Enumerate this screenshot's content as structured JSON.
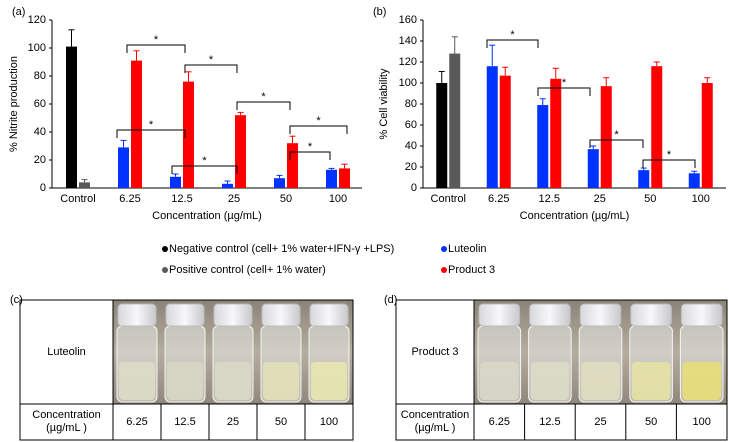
{
  "chart_data": [
    {
      "type": "bar",
      "panel": "(a)",
      "ylabel": "% Nitrite production",
      "xlabel": "Concentration (µg/mL)",
      "categories": [
        "Control",
        "6.25",
        "12.5",
        "25",
        "50",
        "100"
      ],
      "ylim": [
        0,
        120
      ],
      "yticks": [
        0,
        20,
        40,
        60,
        80,
        100,
        120
      ],
      "series": [
        {
          "name": "Negative control (cell+ 1% water+IFN-γ +LPS)",
          "color": "#000000",
          "values": [
            101,
            null,
            null,
            null,
            null,
            null
          ],
          "errors": [
            12,
            null,
            null,
            null,
            null,
            null
          ]
        },
        {
          "name": "Positive control  (cell+ 1% water)",
          "color": "#595959",
          "values": [
            4,
            null,
            null,
            null,
            null,
            null
          ],
          "errors": [
            2,
            null,
            null,
            null,
            null,
            null
          ]
        },
        {
          "name": "Luteolin",
          "color": "#0033ff",
          "values": [
            null,
            29,
            8,
            3,
            7,
            13
          ],
          "errors": [
            null,
            5,
            2,
            2,
            2,
            1
          ]
        },
        {
          "name": "Product 3",
          "color": "#ff0000",
          "values": [
            null,
            91,
            76,
            52,
            32,
            14
          ],
          "errors": [
            null,
            7,
            7,
            2,
            5,
            3
          ]
        }
      ],
      "annotations": [
        "*",
        "*",
        "*",
        "*",
        "*",
        "*",
        "*"
      ]
    },
    {
      "type": "bar",
      "panel": "(b)",
      "ylabel": "% Cell viability",
      "xlabel": "Concentration (µg/mL)",
      "categories": [
        "Control",
        "6.25",
        "12.5",
        "25",
        "50",
        "100"
      ],
      "ylim": [
        0,
        160
      ],
      "yticks": [
        0,
        20,
        40,
        60,
        80,
        100,
        120,
        140,
        160
      ],
      "series": [
        {
          "color": "#000000",
          "values": [
            100,
            null,
            null,
            null,
            null,
            null
          ],
          "errors": [
            11,
            null,
            null,
            null,
            null,
            null
          ]
        },
        {
          "color": "#595959",
          "values": [
            128,
            null,
            null,
            null,
            null,
            null
          ],
          "errors": [
            16,
            null,
            null,
            null,
            null,
            null
          ]
        },
        {
          "color": "#0033ff",
          "values": [
            null,
            116,
            79,
            37,
            17,
            14
          ],
          "errors": [
            null,
            20,
            6,
            3,
            2,
            2
          ]
        },
        {
          "color": "#ff0000",
          "values": [
            null,
            107,
            104,
            97,
            116,
            100
          ],
          "errors": [
            null,
            8,
            10,
            8,
            4,
            5
          ]
        }
      ],
      "annotations": [
        "*",
        "*",
        "*",
        "*"
      ]
    }
  ],
  "panels": [
    {
      "label": "(c)",
      "sample": "Luteolin",
      "row_header": [
        "Concentration",
        "(µg/mL )"
      ],
      "concentrations": [
        "6.25",
        "12.5",
        "25",
        "50",
        "100"
      ]
    },
    {
      "label": "(d)",
      "sample": "Product 3",
      "row_header": [
        "Concentration",
        "(µg/mL )"
      ],
      "concentrations": [
        "6.25",
        "12.5",
        "25",
        "50",
        "100"
      ]
    }
  ]
}
